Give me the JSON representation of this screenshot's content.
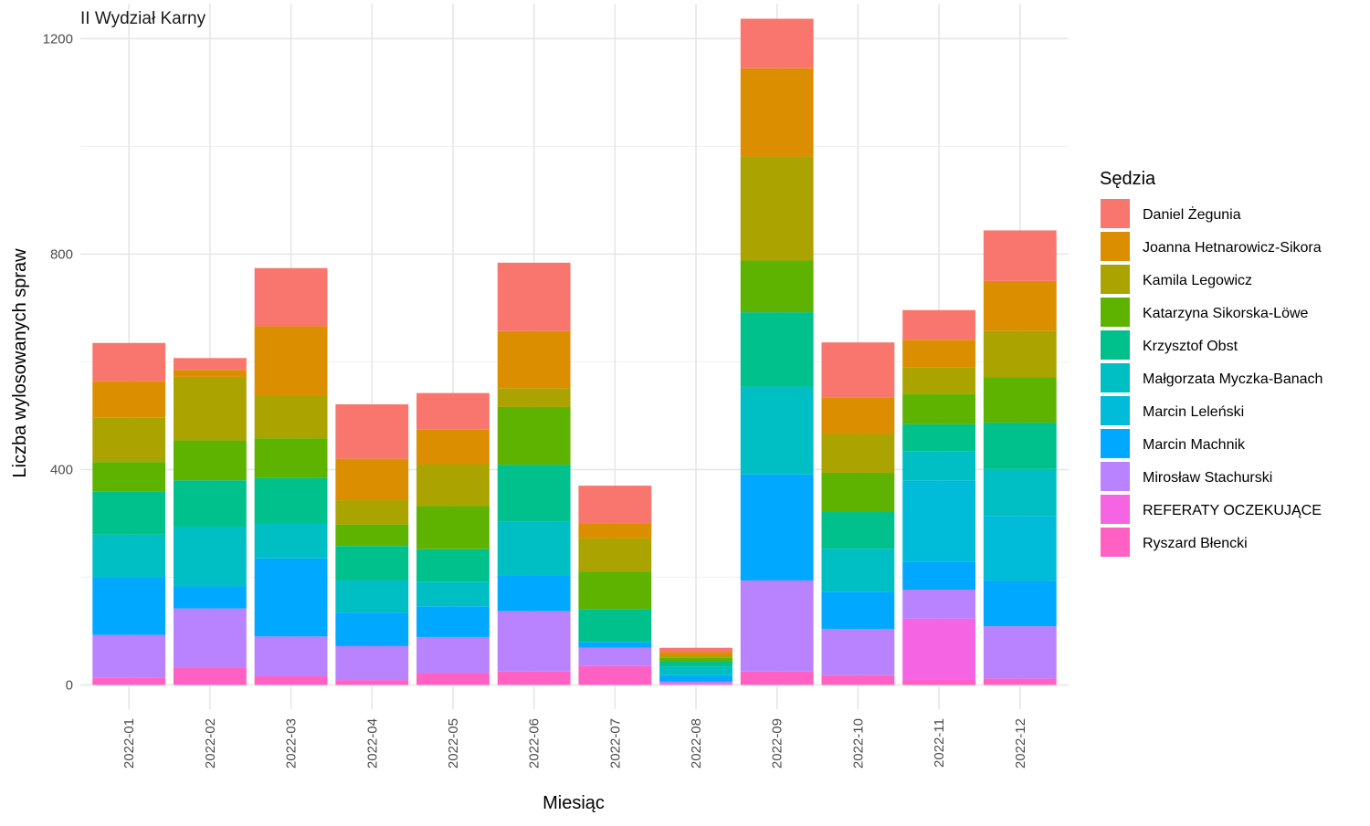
{
  "chart_data": {
    "type": "bar",
    "stacked": true,
    "title": "II Wydział Karny",
    "xlabel": "Miesiąc",
    "ylabel": "Liczba wylosowanych spraw",
    "ylim": [
      -45,
      1265
    ],
    "yticks": [
      0,
      400,
      800,
      1200
    ],
    "grid": true,
    "legend_position": "right",
    "legend_title": "Sędzia",
    "categories": [
      "2022-01",
      "2022-02",
      "2022-03",
      "2022-04",
      "2022-05",
      "2022-06",
      "2022-07",
      "2022-08",
      "2022-09",
      "2022-10",
      "2022-11",
      "2022-12"
    ],
    "series": [
      {
        "name": "Ryszard Błencki",
        "color": "#FF61C3",
        "values": [
          14,
          32,
          16,
          9,
          22,
          25,
          35,
          2,
          25,
          18,
          10,
          12
        ]
      },
      {
        "name": "REFERATY OCZEKUJĄCE",
        "color": "#F564E3",
        "values": [
          0,
          0,
          0,
          0,
          0,
          0,
          0,
          0,
          0,
          0,
          113,
          0
        ]
      },
      {
        "name": "Mirosław Stachurski",
        "color": "#B983FF",
        "values": [
          79,
          110,
          74,
          63,
          67,
          112,
          34,
          4,
          169,
          86,
          54,
          97
        ]
      },
      {
        "name": "Marcin Machnik",
        "color": "#00A9FF",
        "values": [
          107,
          41,
          145,
          62,
          57,
          67,
          11,
          12,
          197,
          69,
          52,
          84
        ]
      },
      {
        "name": "Marcin Leleński",
        "color": "#00BCD8",
        "values": [
          0,
          0,
          0,
          0,
          0,
          0,
          0,
          0,
          0,
          0,
          151,
          121
        ]
      },
      {
        "name": "Małgorzata Myczka-Banach",
        "color": "#00BFC4",
        "values": [
          79,
          111,
          64,
          60,
          46,
          100,
          0,
          16,
          163,
          80,
          54,
          87
        ]
      },
      {
        "name": "Krzysztof Obst",
        "color": "#00C08B",
        "values": [
          80,
          86,
          85,
          64,
          60,
          105,
          61,
          10,
          138,
          68,
          50,
          86
        ]
      },
      {
        "name": "Katarzyna Sikorska-Löwe",
        "color": "#5EB300",
        "values": [
          55,
          74,
          74,
          40,
          80,
          107,
          69,
          6,
          96,
          73,
          57,
          84
        ]
      },
      {
        "name": "Kamila Legowicz",
        "color": "#ABA300",
        "values": [
          82,
          118,
          80,
          45,
          78,
          35,
          62,
          5,
          193,
          72,
          49,
          86
        ]
      },
      {
        "name": "Joanna Hetnarowicz-Sikora",
        "color": "#DB8E00",
        "values": [
          68,
          13,
          128,
          77,
          64,
          106,
          28,
          6,
          164,
          67,
          51,
          93
        ]
      },
      {
        "name": "Daniel Żegunia",
        "color": "#F8766D",
        "values": [
          71,
          22,
          108,
          101,
          68,
          127,
          70,
          8,
          92,
          103,
          55,
          94
        ]
      }
    ]
  }
}
